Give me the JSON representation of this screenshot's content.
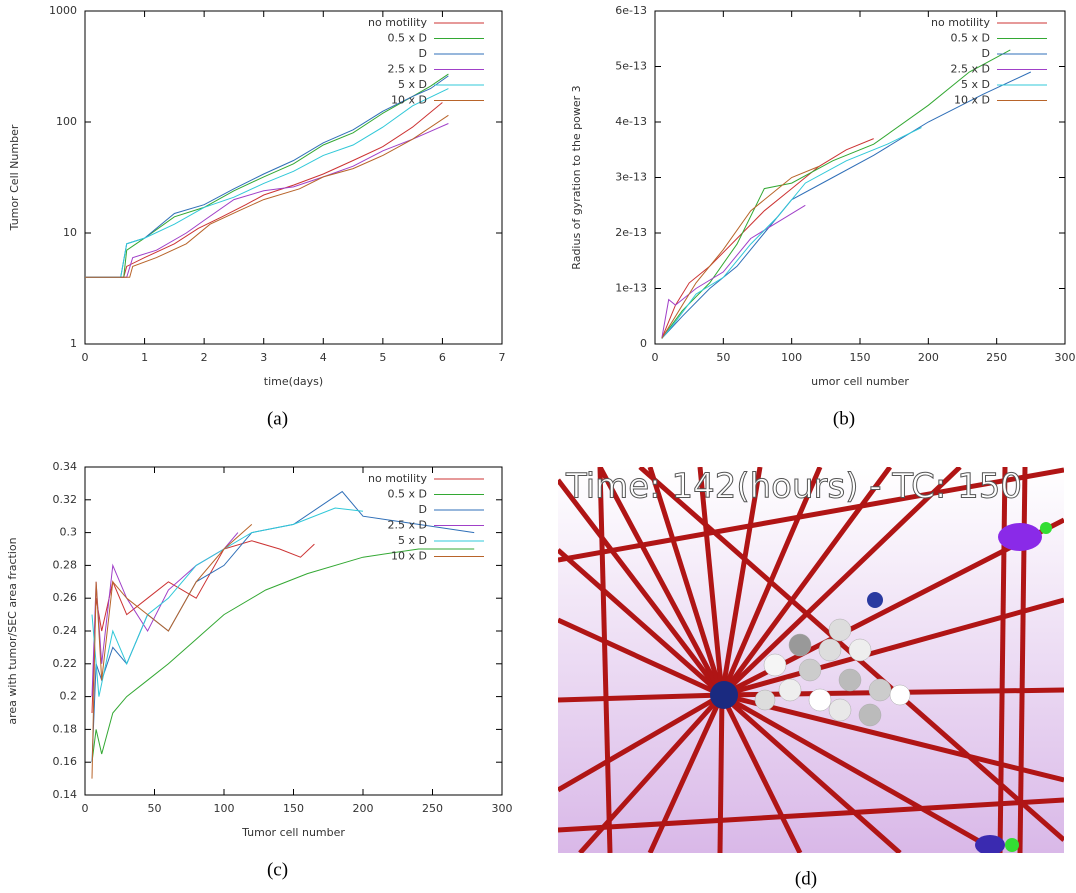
{
  "chart_data": [
    {
      "type": "line",
      "caption": "(a)",
      "x_label": "time(days)",
      "y_label": "Tumor Cell Number",
      "xlim": [
        0,
        7
      ],
      "xticks": [
        0,
        1,
        2,
        3,
        4,
        5,
        6,
        7
      ],
      "ylim": [
        1,
        1000
      ],
      "yticks": [
        1,
        10,
        100,
        1000
      ],
      "log_y": true,
      "grid": false,
      "legend": "top-right",
      "series": [
        {
          "name": "no motility",
          "color": "#cc3333",
          "x": [
            0,
            0.65,
            0.7,
            1.0,
            1.5,
            1.9,
            2.3,
            2.7,
            3.0,
            3.5,
            4.0,
            4.5,
            5.0,
            5.5,
            6.0
          ],
          "values": [
            4,
            4,
            5,
            6,
            8,
            11,
            14,
            18,
            22,
            27,
            34,
            45,
            60,
            90,
            150
          ]
        },
        {
          "name": "0.5 x D",
          "color": "#33a833",
          "x": [
            0,
            0.65,
            0.7,
            1,
            1.5,
            2,
            2.5,
            3,
            3.5,
            4,
            4.5,
            5,
            5.5,
            5.8,
            6.1
          ],
          "values": [
            4,
            4,
            7,
            9,
            14,
            17,
            24,
            32,
            42,
            62,
            80,
            120,
            170,
            210,
            270
          ]
        },
        {
          "name": "D",
          "color": "#2f6fb8",
          "x": [
            0,
            0.6,
            0.7,
            1,
            1.5,
            2,
            2.5,
            3,
            3.5,
            4,
            4.5,
            5,
            5.5,
            5.8,
            6.1
          ],
          "values": [
            4,
            4,
            8,
            9,
            15,
            18,
            25,
            34,
            45,
            65,
            85,
            125,
            170,
            200,
            260
          ]
        },
        {
          "name": "2.5 x D",
          "color": "#a040c8",
          "x": [
            0,
            0.7,
            0.8,
            1.2,
            1.7,
            2.0,
            2.5,
            3.0,
            3.5,
            4.0,
            4.5,
            5.0,
            5.5,
            6.1
          ],
          "values": [
            4,
            4,
            6,
            7,
            10,
            13,
            20,
            24,
            26,
            32,
            40,
            55,
            70,
            97
          ]
        },
        {
          "name": "5 x D",
          "color": "#30c8d8",
          "x": [
            0,
            0.6,
            0.7,
            1,
            1.5,
            2,
            2.5,
            3,
            3.5,
            4,
            4.5,
            5,
            5.5,
            6.1
          ],
          "values": [
            4,
            4,
            8,
            9,
            12,
            17,
            21,
            28,
            36,
            50,
            62,
            90,
            140,
            200
          ]
        },
        {
          "name": "10 x D",
          "color": "#b8642a",
          "x": [
            0,
            0.75,
            0.8,
            1.2,
            1.7,
            2.1,
            2.6,
            3.0,
            3.6,
            4.0,
            4.5,
            5.0,
            5.5,
            6.1
          ],
          "values": [
            4,
            4,
            5,
            6,
            8,
            12,
            16,
            20,
            25,
            32,
            38,
            50,
            70,
            115
          ]
        }
      ]
    },
    {
      "type": "line",
      "caption": "(b)",
      "x_label": "umor cell number",
      "y_label": "Radius of gyration to the power 3",
      "xlim": [
        0,
        300
      ],
      "xticks": [
        0,
        50,
        100,
        150,
        200,
        250,
        300
      ],
      "ylim": [
        0,
        6e-13
      ],
      "yticks": [
        0,
        1e-13,
        2e-13,
        3e-13,
        4e-13,
        5e-13,
        6e-13
      ],
      "log_y": false,
      "grid": false,
      "legend": "top-right",
      "series": [
        {
          "name": "no motility",
          "color": "#cc3333",
          "x": [
            5,
            15,
            25,
            40,
            60,
            80,
            100,
            120,
            140,
            160
          ],
          "values": [
            1e-14,
            7e-14,
            1.1e-13,
            1.4e-13,
            1.9e-13,
            2.4e-13,
            2.8e-13,
            3.2e-13,
            3.5e-13,
            3.7e-13
          ]
        },
        {
          "name": "0.5 x D",
          "color": "#33a833",
          "x": [
            5,
            20,
            40,
            60,
            80,
            100,
            130,
            160,
            200,
            230,
            260
          ],
          "values": [
            1e-14,
            6e-14,
            1.1e-13,
            1.8e-13,
            2.8e-13,
            2.9e-13,
            3.3e-13,
            3.6e-13,
            4.3e-13,
            4.9e-13,
            5.3e-13
          ]
        },
        {
          "name": "D",
          "color": "#2f6fb8",
          "x": [
            5,
            20,
            40,
            60,
            80,
            100,
            130,
            160,
            200,
            240,
            275
          ],
          "values": [
            1e-14,
            5e-14,
            1e-13,
            1.4e-13,
            2e-13,
            2.6e-13,
            3e-13,
            3.4e-13,
            4e-13,
            4.5e-13,
            4.9e-13
          ]
        },
        {
          "name": "2.5 x D",
          "color": "#a040c8",
          "x": [
            5,
            10,
            15,
            30,
            50,
            70,
            90,
            110
          ],
          "values": [
            1e-14,
            8e-14,
            7e-14,
            1e-13,
            1.3e-13,
            1.9e-13,
            2.2e-13,
            2.5e-13
          ]
        },
        {
          "name": "5 x D",
          "color": "#30c8d8",
          "x": [
            5,
            15,
            30,
            50,
            70,
            90,
            110,
            140,
            170,
            195
          ],
          "values": [
            1e-14,
            4e-14,
            9e-14,
            1.2e-13,
            1.8e-13,
            2.3e-13,
            2.9e-13,
            3.3e-13,
            3.6e-13,
            3.9e-13
          ]
        },
        {
          "name": "10 x D",
          "color": "#b8642a",
          "x": [
            5,
            15,
            30,
            50,
            70,
            90,
            100,
            120
          ],
          "values": [
            1e-14,
            5e-14,
            1.1e-13,
            1.7e-13,
            2.4e-13,
            2.8e-13,
            3e-13,
            3.2e-13
          ]
        }
      ]
    },
    {
      "type": "line",
      "caption": "(c)",
      "x_label": "Tumor cell number",
      "y_label": "area with tumor/SEC area fraction",
      "xlim": [
        0,
        300
      ],
      "xticks": [
        0,
        50,
        100,
        150,
        200,
        250,
        300
      ],
      "ylim": [
        0.14,
        0.34
      ],
      "yticks": [
        0.14,
        0.16,
        0.18,
        0.2,
        0.22,
        0.24,
        0.26,
        0.28,
        0.3,
        0.32,
        0.34
      ],
      "log_y": false,
      "grid": false,
      "legend": "top-right",
      "series": [
        {
          "name": "no motility",
          "color": "#cc3333",
          "x": [
            5,
            8,
            12,
            20,
            30,
            45,
            60,
            80,
            100,
            120,
            140,
            155,
            165
          ],
          "values": [
            0.19,
            0.26,
            0.24,
            0.27,
            0.25,
            0.26,
            0.27,
            0.26,
            0.29,
            0.295,
            0.29,
            0.285,
            0.293
          ]
        },
        {
          "name": "0.5 x D",
          "color": "#33a833",
          "x": [
            5,
            8,
            12,
            20,
            30,
            45,
            60,
            80,
            100,
            130,
            160,
            200,
            240,
            280
          ],
          "values": [
            0.16,
            0.18,
            0.165,
            0.19,
            0.2,
            0.21,
            0.22,
            0.235,
            0.25,
            0.265,
            0.275,
            0.285,
            0.29,
            0.29
          ]
        },
        {
          "name": "D",
          "color": "#2f6fb8",
          "x": [
            5,
            8,
            12,
            20,
            30,
            45,
            60,
            80,
            100,
            120,
            150,
            185,
            200,
            240,
            280
          ],
          "values": [
            0.16,
            0.22,
            0.21,
            0.23,
            0.22,
            0.25,
            0.24,
            0.27,
            0.28,
            0.3,
            0.305,
            0.325,
            0.31,
            0.305,
            0.3
          ]
        },
        {
          "name": "2.5 x D",
          "color": "#a040c8",
          "x": [
            5,
            8,
            12,
            20,
            30,
            45,
            60,
            80,
            100,
            110
          ],
          "values": [
            0.2,
            0.27,
            0.22,
            0.28,
            0.26,
            0.24,
            0.265,
            0.28,
            0.29,
            0.3
          ]
        },
        {
          "name": "5 x D",
          "color": "#30c8d8",
          "x": [
            5,
            10,
            20,
            30,
            45,
            60,
            80,
            100,
            120,
            150,
            180,
            200
          ],
          "values": [
            0.25,
            0.2,
            0.24,
            0.22,
            0.25,
            0.26,
            0.28,
            0.29,
            0.3,
            0.305,
            0.315,
            0.313
          ]
        },
        {
          "name": "10 x D",
          "color": "#b8642a",
          "x": [
            5,
            8,
            12,
            20,
            30,
            45,
            60,
            80,
            100,
            120
          ],
          "values": [
            0.15,
            0.27,
            0.21,
            0.27,
            0.26,
            0.25,
            0.24,
            0.27,
            0.29,
            0.305
          ]
        }
      ]
    }
  ],
  "image_panel": {
    "overlay_text": "Time: 142(hours) - TC: 150",
    "caption": "(d)"
  }
}
